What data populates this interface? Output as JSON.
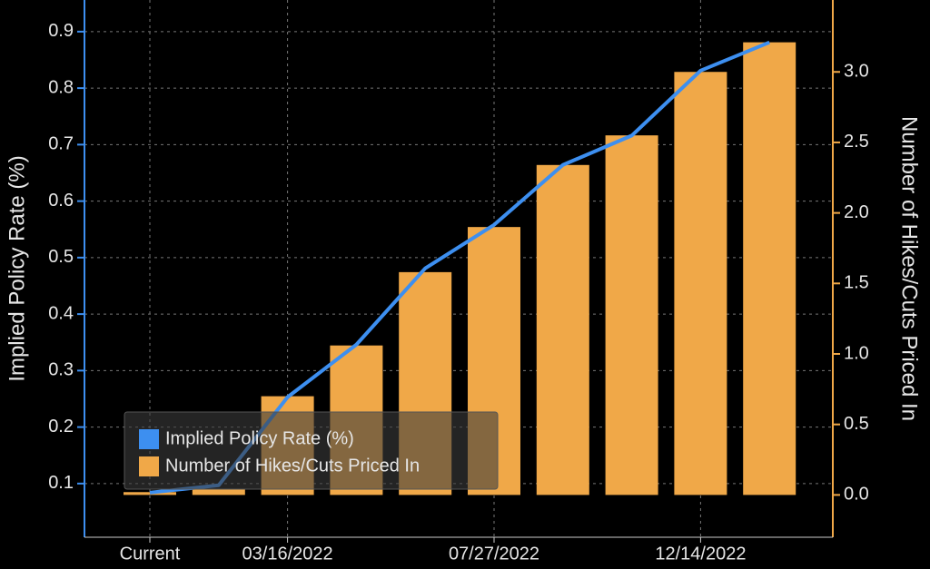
{
  "chart_data": {
    "type": "bar",
    "categories": [
      "Current",
      null,
      "03/16/2022",
      null,
      null,
      "07/27/2022",
      null,
      null,
      "12/14/2022",
      null
    ],
    "series": [
      {
        "name": "Implied Policy Rate (%)",
        "type": "line",
        "color": "#3d8ff0",
        "axis": "y",
        "values": [
          0.084,
          0.097,
          0.253,
          0.346,
          0.481,
          0.558,
          0.664,
          0.716,
          0.831,
          0.881
        ]
      },
      {
        "name": "Number of Hikes/Cuts Priced In",
        "type": "bar",
        "color": "#f0a848",
        "axis": "y2",
        "values": [
          0.02,
          0.04,
          0.7,
          1.06,
          1.58,
          1.9,
          2.34,
          2.55,
          3.0,
          3.21
        ]
      }
    ],
    "ylabel": "Implied Policy Rate (%)",
    "y2label": "Number of Hikes/Cuts Priced In",
    "ylim": [
      0.005,
      0.956
    ],
    "yticks": [
      0.1,
      0.2,
      0.3,
      0.4,
      0.5,
      0.6,
      0.7,
      0.8,
      0.9
    ],
    "y2lim": [
      -0.3,
      3.51
    ],
    "y2ticks": [
      {
        "value": 0,
        "label": "0.0"
      },
      0.5,
      {
        "value": 1,
        "label": "1.0"
      },
      1.5,
      {
        "value": 2,
        "label": "2.0"
      },
      2.5,
      {
        "value": 3,
        "label": "3.0"
      }
    ],
    "grid": true,
    "legend": "lower left"
  }
}
